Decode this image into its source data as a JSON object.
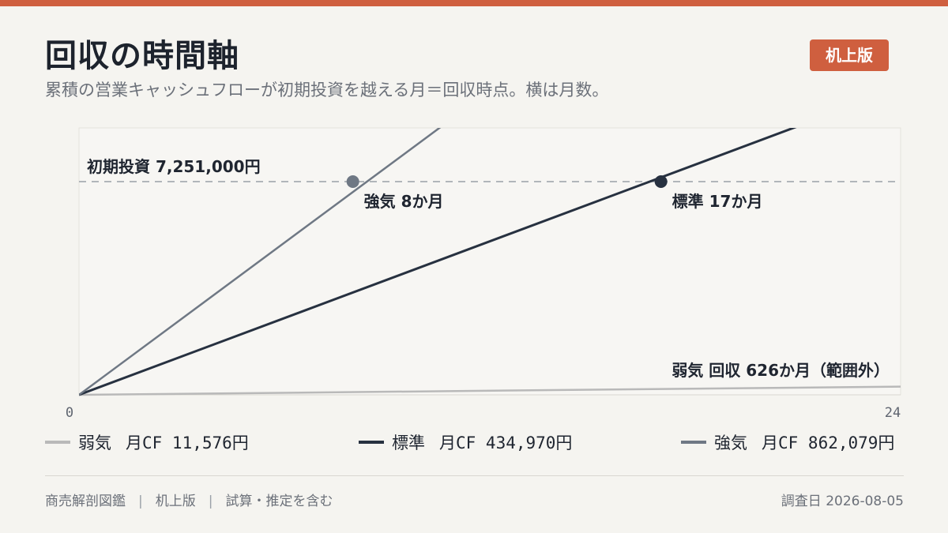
{
  "header": {
    "title": "回収の時間軸",
    "subtitle": "累積の営業キャッシュフローが初期投資を越える月＝回収時点。横は月数。",
    "badge": "机上版"
  },
  "chart_data": {
    "type": "line",
    "xlim": [
      0,
      24
    ],
    "x_tick_labels": [
      "0",
      "24"
    ],
    "threshold": {
      "value": 7251000,
      "label": "初期投資 7,251,000円"
    },
    "series": [
      {
        "name": "弱気",
        "monthly_cf": 11576,
        "legend_text": "月CF 11,576円",
        "payback_months": 626,
        "annotation": "弱気 回収 626か月（範囲外）",
        "color": "#b9b9b9"
      },
      {
        "name": "標準",
        "monthly_cf": 434970,
        "legend_text": "月CF 434,970円",
        "payback_months": 17,
        "annotation": "標準 17か月",
        "color": "#273140"
      },
      {
        "name": "強気",
        "monthly_cf": 862079,
        "legend_text": "月CF 862,079円",
        "payback_months": 8,
        "annotation": "強気 8か月",
        "color": "#6f7884"
      }
    ],
    "grid": false
  },
  "footer": {
    "items": [
      "商売解剖図鑑",
      "机上版",
      "試算・推定を含む"
    ],
    "separator": "|",
    "date": "調査日 2026-08-05"
  }
}
